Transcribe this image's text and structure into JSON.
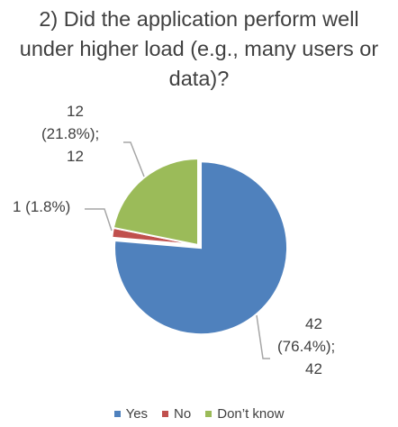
{
  "chart_data": {
    "type": "pie",
    "title_lines": [
      "2) Did the application perform well",
      "under higher load (e.g., many users or",
      "data)?"
    ],
    "categories": [
      "Yes",
      "No",
      "Don’t know"
    ],
    "values": [
      42,
      1,
      12
    ],
    "percent_labels": [
      "(76.4%);",
      "(1.8%)",
      "(21.8%);"
    ],
    "colors": [
      "#4f81bd",
      "#c0504d",
      "#9bbb59"
    ],
    "exploded": "Yes",
    "legend_position": "bottom",
    "data_labels": {
      "yes": {
        "line1": "42",
        "line2": "(76.4%);",
        "line3": "42"
      },
      "no": {
        "line1": "1 (1.8%)"
      },
      "dontknow": {
        "line1": "12",
        "line2": "(21.8%);",
        "line3": "12"
      }
    }
  }
}
